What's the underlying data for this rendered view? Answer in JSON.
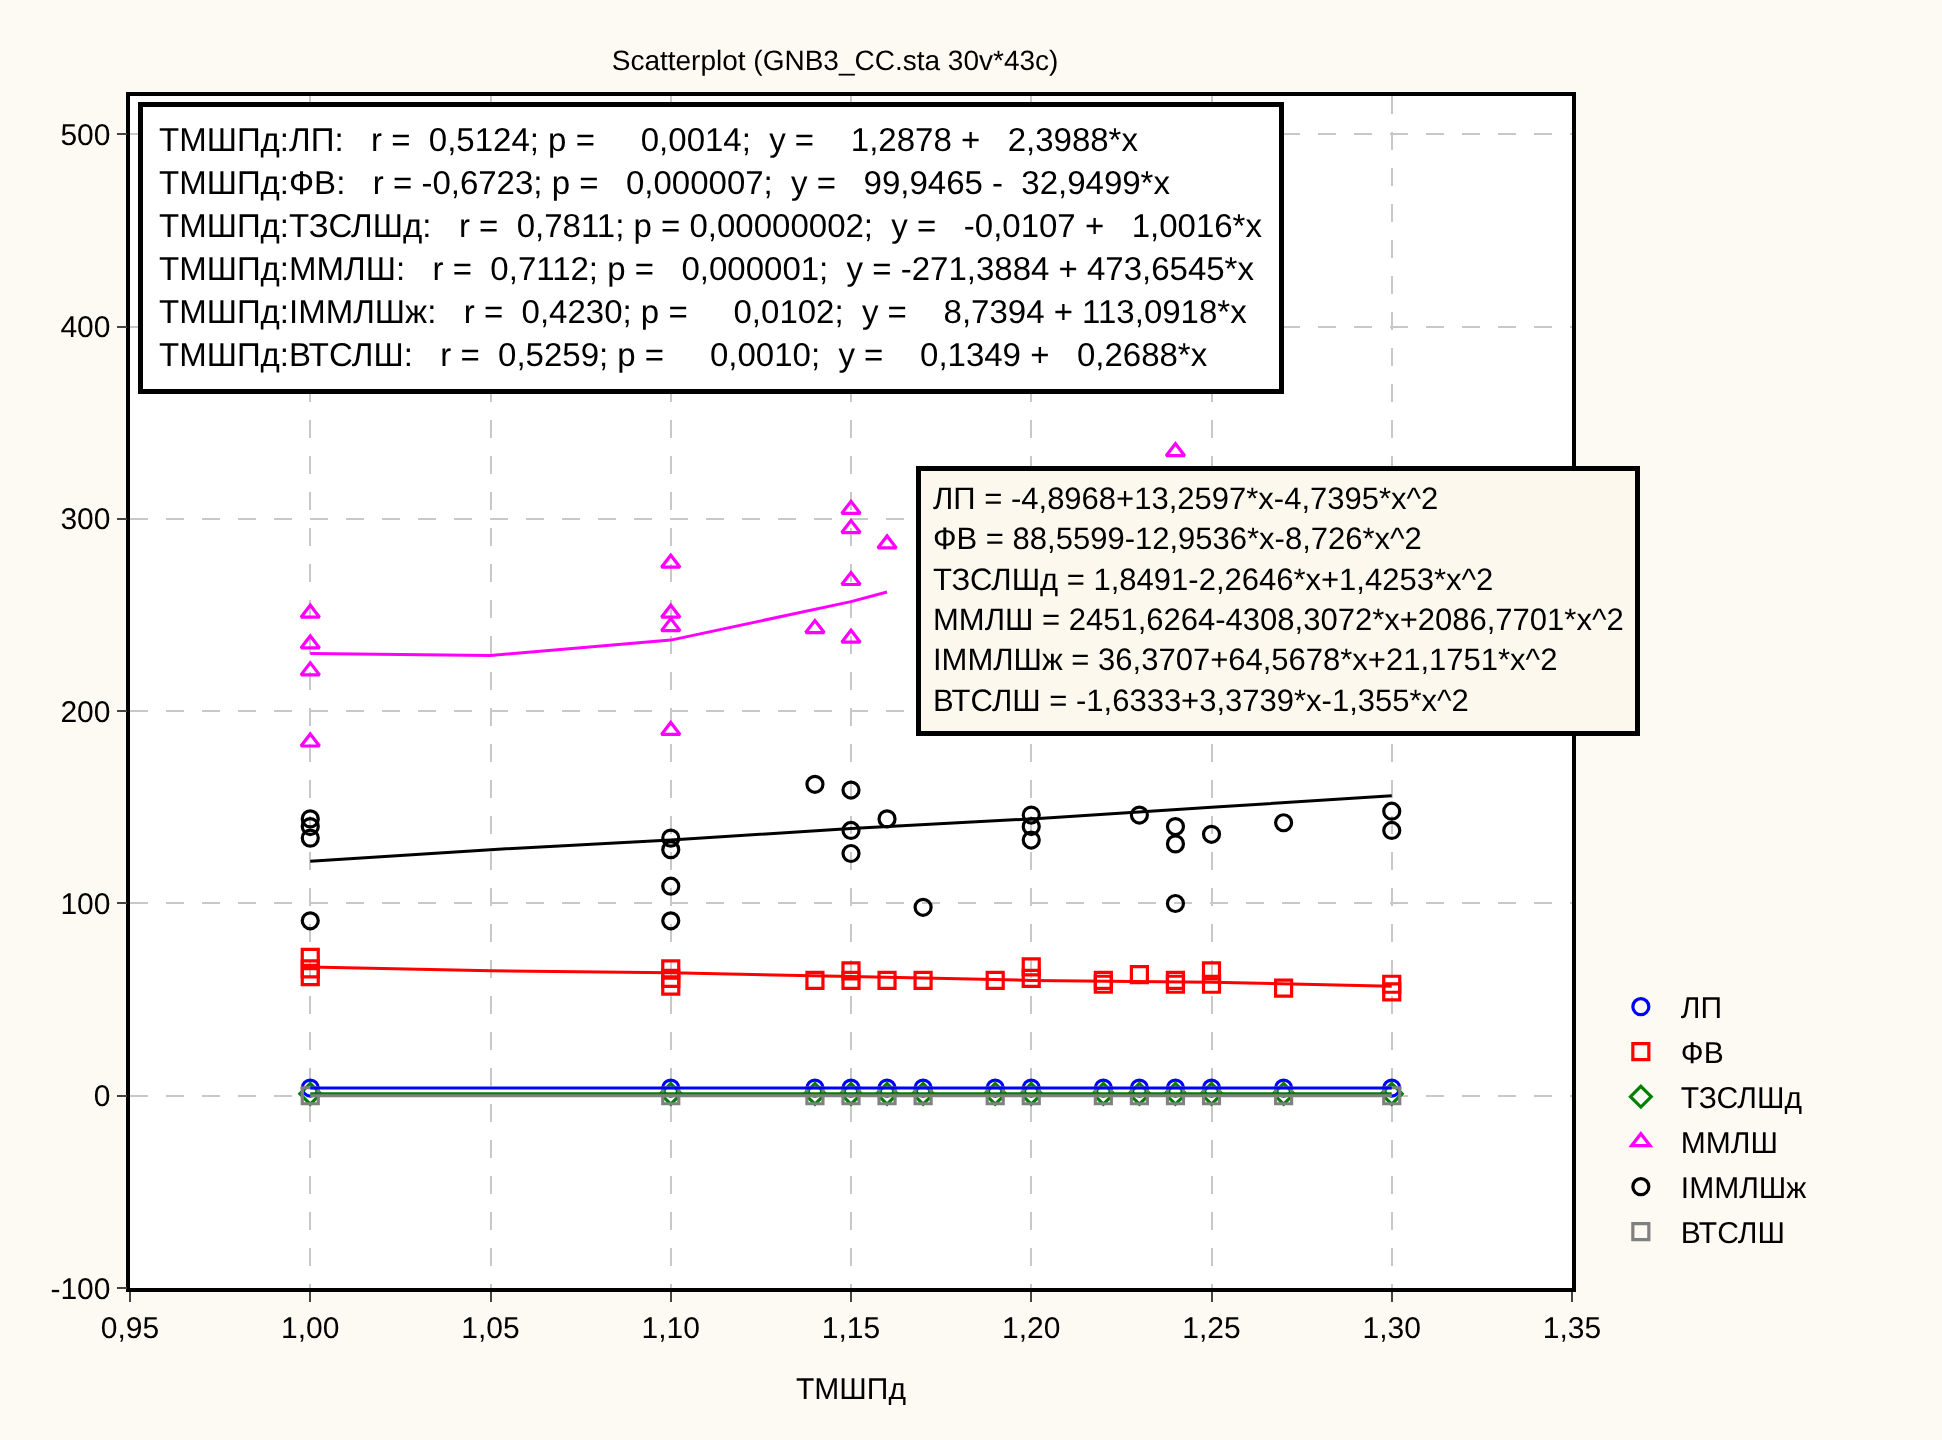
{
  "chart_data": {
    "type": "scatter",
    "title": "Scatterplot (GNB3_CC.sta 30v*43c)",
    "xlabel": "ТМШПд",
    "xlim": [
      0.95,
      1.35
    ],
    "xticks": [
      {
        "value": 0.95,
        "label": "0,95"
      },
      {
        "value": 1,
        "label": "1,00"
      },
      {
        "value": 1.05,
        "label": "1,05"
      },
      {
        "value": 1.1,
        "label": "1,10"
      },
      {
        "value": 1.15,
        "label": "1,15"
      },
      {
        "value": 1.2,
        "label": "1,20"
      },
      {
        "value": 1.25,
        "label": "1,25"
      },
      {
        "value": 1.3,
        "label": "1,30"
      },
      {
        "value": 1.35,
        "label": "1,35"
      }
    ],
    "ylim": [
      -100,
      520
    ],
    "yticks": [
      -100,
      0,
      100,
      200,
      300,
      400,
      500
    ],
    "grid": true,
    "legend": "bottom right",
    "series": [
      {
        "name": "ЛП",
        "color": "#0000ff",
        "marker": "circle",
        "x": [
          1,
          1.1,
          1.14,
          1.15,
          1.16,
          1.17,
          1.19,
          1.2,
          1.22,
          1.23,
          1.24,
          1.25,
          1.27,
          1.3
        ],
        "values": [
          4,
          4,
          4,
          4,
          4,
          4,
          4,
          4,
          4,
          4,
          4,
          4,
          4,
          4
        ]
      },
      {
        "name": "ФВ",
        "color": "#ff0000",
        "marker": "square",
        "x": [
          1,
          1,
          1,
          1.1,
          1.1,
          1.1,
          1.14,
          1.15,
          1.15,
          1.16,
          1.17,
          1.19,
          1.2,
          1.2,
          1.22,
          1.22,
          1.23,
          1.24,
          1.24,
          1.25,
          1.25,
          1.27,
          1.3,
          1.3
        ],
        "values": [
          72,
          66,
          62,
          66,
          61,
          57,
          60,
          65,
          60,
          60,
          60,
          60,
          67,
          61,
          60,
          58,
          63,
          60,
          58,
          65,
          58,
          56,
          58,
          54
        ]
      },
      {
        "name": "ТЗСЛШд",
        "color": "#008000",
        "marker": "diamond",
        "x": [
          1,
          1.1,
          1.14,
          1.15,
          1.16,
          1.17,
          1.19,
          1.2,
          1.22,
          1.23,
          1.24,
          1.25,
          1.27,
          1.3
        ],
        "values": [
          1,
          1,
          1,
          1,
          1,
          1,
          1,
          1,
          1,
          1,
          1,
          1,
          1,
          1
        ]
      },
      {
        "name": "ММЛШ",
        "color": "#ff00ff",
        "marker": "triangle",
        "x": [
          1,
          1,
          1,
          1,
          1.1,
          1.1,
          1.1,
          1.1,
          1.14,
          1.15,
          1.15,
          1.15,
          1.15,
          1.16,
          1.24
        ],
        "values": [
          251,
          235,
          221,
          184,
          277,
          251,
          244,
          190,
          243,
          305,
          295,
          268,
          238,
          287,
          335
        ]
      },
      {
        "name": "ІММЛШж",
        "color": "#000000",
        "marker": "circle",
        "x": [
          1,
          1,
          1,
          1,
          1.1,
          1.1,
          1.1,
          1.1,
          1.14,
          1.15,
          1.15,
          1.15,
          1.16,
          1.17,
          1.2,
          1.2,
          1.2,
          1.23,
          1.24,
          1.24,
          1.24,
          1.25,
          1.27,
          1.3,
          1.3
        ],
        "values": [
          144,
          140,
          134,
          91,
          134,
          128,
          109,
          91,
          162,
          159,
          138,
          126,
          144,
          98,
          146,
          140,
          133,
          146,
          140,
          131,
          100,
          136,
          142,
          148,
          138
        ]
      },
      {
        "name": "ВТСЛШ",
        "color": "#808080",
        "marker": "square",
        "x": [
          1,
          1.1,
          1.14,
          1.15,
          1.16,
          1.17,
          1.19,
          1.2,
          1.22,
          1.23,
          1.24,
          1.25,
          1.27,
          1.3
        ],
        "values": [
          0,
          0,
          0,
          0,
          0,
          0,
          0,
          0,
          0,
          0,
          0,
          0,
          0,
          0
        ]
      },
      {
        "type": "line",
        "color": "#0000ff",
        "x": [
          1,
          1.3
        ],
        "values": [
          4,
          4
        ]
      },
      {
        "type": "line",
        "color": "#ff0000",
        "x": [
          1,
          1.05,
          1.1,
          1.15,
          1.2,
          1.25,
          1.3
        ],
        "values": [
          67,
          65,
          64,
          62,
          60,
          59,
          57
        ]
      },
      {
        "type": "line",
        "color": "#008000",
        "x": [
          1,
          1.3
        ],
        "values": [
          1,
          1
        ]
      },
      {
        "type": "line",
        "color": "#ff00ff",
        "x": [
          1,
          1.05,
          1.1,
          1.15,
          1.16
        ],
        "values": [
          230,
          229,
          237,
          257,
          262
        ]
      },
      {
        "type": "line",
        "color": "#000000",
        "x": [
          1,
          1.05,
          1.1,
          1.15,
          1.2,
          1.25,
          1.3
        ],
        "values": [
          122,
          128,
          133,
          139,
          144,
          150,
          156
        ]
      },
      {
        "type": "line",
        "color": "#808080",
        "x": [
          1,
          1.3
        ],
        "values": [
          0,
          0
        ]
      }
    ],
    "annotations": [
      "ТМШПд:ЛП:   r =  0,5124; p =     0,0014;  y =    1,2878 +   2,3988*x",
      "ТМШПд:ФВ:   r = -0,6723; p =   0,000007;  y =   99,9465 -  32,9499*x",
      "ТМШПд:ТЗСЛШд:   r =  0,7811; p = 0,00000002;  y =   -0,0107 +   1,0016*x",
      "ТМШПд:ММЛШ:   r =  0,7112; p =   0,000001;  y = -271,3884 + 473,6545*x",
      "ТМШПд:ІММЛШж:   r =  0,4230; p =     0,0102;  y =    8,7394 + 113,0918*x",
      "ТМШПд:ВТСЛШ:   r =  0,5259; p =     0,0010;  y =    0,1349 +   0,2688*x",
      "ЛП = -4,8968+13,2597*x-4,7395*x^2",
      "ФВ = 88,5599-12,9536*x-8,726*x^2",
      "ТЗСЛШд = 1,8491-2,2646*x+1,4253*x^2",
      "ММЛШ = 2451,6264-4308,3072*x+2086,7701*x^2",
      "ІММЛШж = 36,3707+64,5678*x+21,1751*x^2",
      "ВТСЛШ = -1,6333+3,3739*x-1,355*x^2"
    ]
  }
}
